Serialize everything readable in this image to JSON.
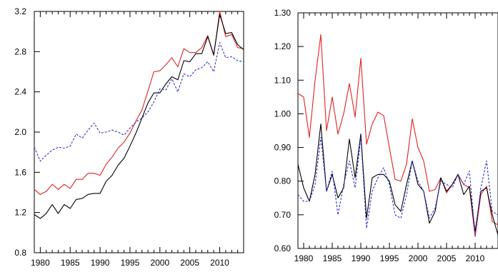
{
  "chart_data": [
    {
      "type": "line",
      "title": "",
      "xlabel": "",
      "ylabel": "",
      "xlim": [
        1979,
        2014
      ],
      "ylim": [
        0.8,
        3.2
      ],
      "grid": false,
      "x_ticks": [
        1980,
        1985,
        1990,
        1995,
        2000,
        2005,
        2010
      ],
      "x_tick_labels": [
        "1980",
        "1985",
        "1990",
        "1995",
        "2000",
        "2005",
        "2010"
      ],
      "y_ticks": [
        0.8,
        1.2,
        1.6,
        2.0,
        2.4,
        2.8,
        3.2
      ],
      "y_tick_labels": [
        "0.8",
        "1.2",
        "1.6",
        "2.0",
        "2.4",
        "2.8",
        "3.2"
      ],
      "x": [
        1979,
        1980,
        1981,
        1982,
        1983,
        1984,
        1985,
        1986,
        1987,
        1988,
        1989,
        1990,
        1991,
        1992,
        1993,
        1994,
        1995,
        1996,
        1997,
        1998,
        1999,
        2000,
        2001,
        2002,
        2003,
        2004,
        2005,
        2006,
        2007,
        2008,
        2009,
        2010,
        2011,
        2012,
        2013,
        2014
      ],
      "series": [
        {
          "color": "#dd2222",
          "dash": "solid",
          "values": [
            1.43,
            1.38,
            1.41,
            1.48,
            1.43,
            1.48,
            1.44,
            1.53,
            1.53,
            1.59,
            1.59,
            1.57,
            1.68,
            1.75,
            1.84,
            1.9,
            1.99,
            2.11,
            2.22,
            2.41,
            2.6,
            2.61,
            2.67,
            2.74,
            2.65,
            2.83,
            2.79,
            2.79,
            2.84,
            2.96,
            2.76,
            3.2,
            2.95,
            2.97,
            2.84,
            2.83
          ]
        },
        {
          "color": "#000000",
          "dash": "solid",
          "values": [
            1.18,
            1.14,
            1.19,
            1.28,
            1.19,
            1.28,
            1.24,
            1.33,
            1.34,
            1.38,
            1.39,
            1.39,
            1.51,
            1.57,
            1.67,
            1.74,
            1.86,
            1.99,
            2.14,
            2.29,
            2.39,
            2.39,
            2.48,
            2.55,
            2.52,
            2.71,
            2.7,
            2.78,
            2.78,
            2.95,
            2.77,
            3.17,
            2.98,
            2.99,
            2.87,
            2.82
          ]
        },
        {
          "color": "#3333cc",
          "dash": "dashed",
          "values": [
            1.85,
            1.71,
            1.77,
            1.82,
            1.85,
            1.84,
            1.86,
            1.98,
            1.94,
            2.02,
            2.09,
            1.99,
            2.0,
            2.02,
            2.0,
            1.97,
            2.04,
            2.1,
            2.14,
            2.2,
            2.3,
            2.43,
            2.42,
            2.53,
            2.4,
            2.58,
            2.55,
            2.62,
            2.64,
            2.7,
            2.6,
            2.89,
            2.74,
            2.75,
            2.71,
            2.7
          ]
        }
      ]
    },
    {
      "type": "line",
      "title": "",
      "xlabel": "",
      "ylabel": "",
      "xlim": [
        1979,
        2014
      ],
      "ylim": [
        0.6,
        1.3
      ],
      "grid": false,
      "x_ticks": [
        1980,
        1985,
        1990,
        1995,
        2000,
        2005,
        2010
      ],
      "x_tick_labels": [
        "1980",
        "1985",
        "1990",
        "1995",
        "2000",
        "2005",
        "2010"
      ],
      "y_ticks": [
        0.6,
        0.7,
        0.8,
        0.9,
        1.0,
        1.1,
        1.2,
        1.3
      ],
      "y_tick_labels": [
        "0.60",
        "0.70",
        "0.80",
        "0.90",
        "1.00",
        "1.10",
        "1.20",
        "1.30"
      ],
      "x": [
        1979,
        1980,
        1981,
        1982,
        1983,
        1984,
        1985,
        1986,
        1987,
        1988,
        1989,
        1990,
        1991,
        1992,
        1993,
        1994,
        1995,
        1996,
        1997,
        1998,
        1999,
        2000,
        2001,
        2002,
        2003,
        2004,
        2005,
        2006,
        2007,
        2008,
        2009,
        2010,
        2011,
        2012,
        2013,
        2014
      ],
      "series": [
        {
          "color": "#dd2222",
          "dash": "solid",
          "values": [
            1.06,
            1.05,
            0.93,
            1.1,
            1.235,
            0.95,
            1.05,
            0.94,
            1.0,
            1.09,
            0.99,
            1.165,
            0.91,
            0.97,
            1.005,
            0.995,
            0.9,
            0.805,
            0.8,
            0.85,
            0.985,
            0.9,
            0.86,
            0.77,
            0.775,
            0.81,
            0.765,
            0.79,
            0.82,
            0.79,
            0.78,
            0.635,
            0.76,
            0.785,
            0.68,
            0.67
          ]
        },
        {
          "color": "#000000",
          "dash": "solid",
          "values": [
            0.85,
            0.78,
            0.74,
            0.82,
            0.97,
            0.77,
            0.82,
            0.75,
            0.78,
            0.925,
            0.81,
            0.94,
            0.69,
            0.81,
            0.82,
            0.82,
            0.8,
            0.73,
            0.71,
            0.79,
            0.86,
            0.79,
            0.77,
            0.675,
            0.71,
            0.81,
            0.77,
            0.79,
            0.82,
            0.76,
            0.785,
            0.65,
            0.77,
            0.78,
            0.7,
            0.64
          ]
        },
        {
          "color": "#3333cc",
          "dash": "dashed",
          "values": [
            0.76,
            0.74,
            0.74,
            0.79,
            0.93,
            0.77,
            0.83,
            0.7,
            0.79,
            0.86,
            0.78,
            0.93,
            0.66,
            0.77,
            0.81,
            0.84,
            0.79,
            0.7,
            0.69,
            0.76,
            0.86,
            0.8,
            0.77,
            0.69,
            0.72,
            0.8,
            0.79,
            0.78,
            0.82,
            0.79,
            0.83,
            0.64,
            0.78,
            0.86,
            0.71,
            0.7
          ]
        }
      ]
    }
  ]
}
